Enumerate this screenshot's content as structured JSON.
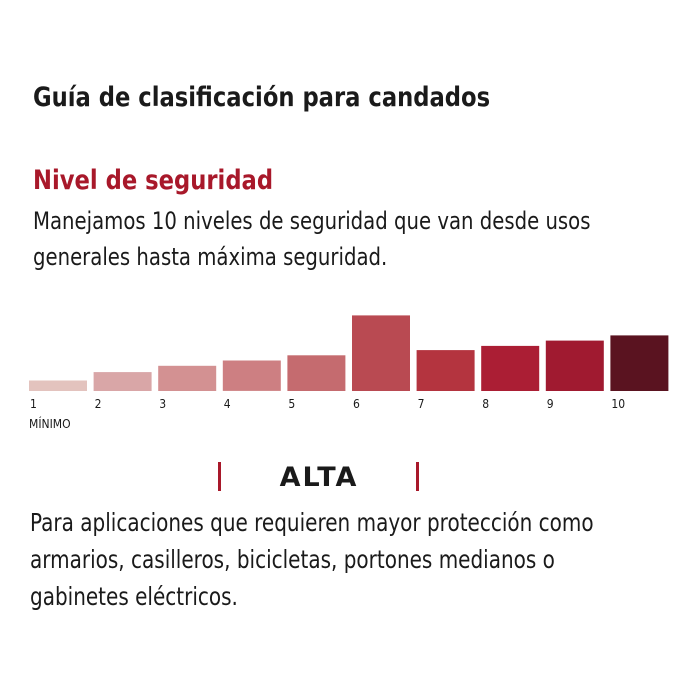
{
  "page": {
    "title": "Guía de clasificación para candados"
  },
  "section": {
    "heading": "Nivel de seguridad",
    "heading_color": "#a8182a",
    "intro_lines": [
      "Manejamos 10 niveles de seguridad que van desde usos",
      "generales hasta máxima seguridad."
    ]
  },
  "chart_data": {
    "type": "bar",
    "categories": [
      "1",
      "2",
      "3",
      "4",
      "5",
      "6",
      "7",
      "8",
      "9",
      "10"
    ],
    "values": [
      1.0,
      1.8,
      2.4,
      2.9,
      3.4,
      7.2,
      3.9,
      4.3,
      4.8,
      5.3
    ],
    "ylim": [
      0,
      8
    ],
    "highlighted_category": "6",
    "colors": [
      "#e3c3be",
      "#d9a6a7",
      "#d39192",
      "#cd7f82",
      "#c56b6f",
      "#b94a52",
      "#b4343f",
      "#ab1e34",
      "#a01a30",
      "#5a1320"
    ],
    "start_label": "MÍNIMO",
    "grid": false,
    "legend": "none"
  },
  "level": {
    "name": "ALTA",
    "marker_color": "#a8182a",
    "description_lines": [
      "Para aplicaciones que requieren mayor protección como",
      "armarios, casilleros, bicicletas, portones medianos o",
      "gabinetes eléctricos."
    ]
  }
}
